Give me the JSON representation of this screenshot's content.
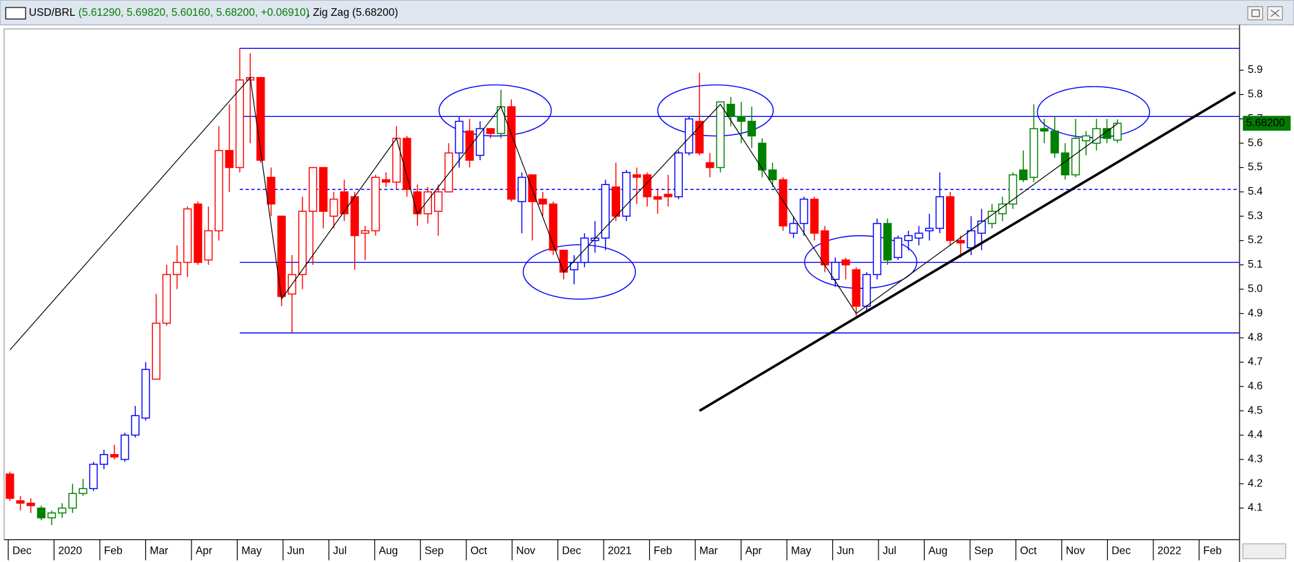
{
  "chart_data": {
    "type": "candlestick",
    "header": {
      "symbol": "USD/BRL",
      "ohlc_text": "(5.61290, 5.69820, 5.60160, 5.68200, +0.06910)",
      "indicator_text": "Zig Zag (5.68200)"
    },
    "last_price": {
      "value": 5.682,
      "label": "5.68200"
    },
    "x_labels": [
      "Dec",
      "2020",
      "Feb",
      "Mar",
      "Apr",
      "May",
      "Jun",
      "Jul",
      "Aug",
      "Sep",
      "Oct",
      "Nov",
      "Dec",
      "2021",
      "Feb",
      "Mar",
      "Apr",
      "May",
      "Jun",
      "Jul",
      "Aug",
      "Sep",
      "Oct",
      "Nov",
      "Dec",
      "2022",
      "Feb"
    ],
    "ylim": [
      3.97,
      6.07
    ],
    "yticks": [
      4.1,
      4.2,
      4.3,
      4.4,
      4.5,
      4.6,
      4.7,
      4.8,
      4.9,
      {
        "value": 5,
        "label": "5.0"
      },
      5.1,
      5.2,
      5.3,
      5.4,
      5.5,
      5.6,
      5.7,
      5.8,
      5.9
    ],
    "candles": {
      "open": [
        4.24,
        4.13,
        4.12,
        4.1,
        4.06,
        4.08,
        4.1,
        4.16,
        4.18,
        4.28,
        4.32,
        4.3,
        4.4,
        4.47,
        4.63,
        4.86,
        5.06,
        5.11,
        5.35,
        5.12,
        5.24,
        5.57,
        5.5,
        5.86,
        5.87,
        5.46,
        5.3,
        4.98,
        5.06,
        5.32,
        5.5,
        5.3,
        5.4,
        5.38,
        5.23,
        5.24,
        5.45,
        5.44,
        5.62,
        5.4,
        5.31,
        5.32,
        5.4,
        5.56,
        5.65,
        5.55,
        5.66,
        5.64,
        5.75,
        5.36,
        5.47,
        5.37,
        5.35,
        5.16,
        5.08,
        5.11,
        5.2,
        5.21,
        5.42,
        5.3,
        5.47,
        5.47,
        5.38,
        5.39,
        5.38,
        5.56,
        5.69,
        5.52,
        5.5,
        5.76,
        5.71,
        5.69,
        5.6,
        5.49,
        5.45,
        5.23,
        5.27,
        5.37,
        5.24,
        5.04,
        5.12,
        5.08,
        4.93,
        5.06,
        5.27,
        5.13,
        5.2,
        5.21,
        5.24,
        5.25,
        5.38,
        5.2,
        5.17,
        5.23,
        5.27,
        5.31,
        5.35,
        5.49,
        5.46,
        5.66,
        5.65,
        5.56,
        5.47,
        5.61,
        5.6,
        5.66,
        5.6129
      ],
      "high": [
        4.25,
        4.15,
        4.14,
        4.11,
        4.09,
        4.12,
        4.2,
        4.22,
        4.29,
        4.34,
        4.36,
        4.41,
        4.52,
        4.7,
        4.98,
        5.1,
        5.18,
        5.34,
        5.36,
        5.34,
        5.67,
        5.76,
        5.99,
        5.97,
        5.87,
        5.5,
        5.3,
        5.14,
        5.38,
        5.5,
        5.5,
        5.4,
        5.45,
        5.4,
        5.26,
        5.47,
        5.48,
        5.67,
        5.63,
        5.43,
        5.42,
        5.43,
        5.6,
        5.71,
        5.7,
        5.69,
        5.66,
        5.82,
        5.78,
        5.48,
        5.47,
        5.4,
        5.36,
        5.16,
        5.14,
        5.23,
        5.28,
        5.45,
        5.52,
        5.49,
        5.5,
        5.48,
        5.41,
        5.47,
        5.57,
        5.71,
        5.89,
        5.56,
        5.77,
        5.79,
        5.77,
        5.75,
        5.62,
        5.52,
        5.46,
        5.3,
        5.38,
        5.38,
        5.26,
        5.13,
        5.13,
        5.09,
        5.07,
        5.29,
        5.29,
        5.22,
        5.24,
        5.26,
        5.31,
        5.48,
        5.4,
        5.22,
        5.3,
        5.33,
        5.35,
        5.38,
        5.48,
        5.57,
        5.76,
        5.7,
        5.71,
        5.6,
        5.7,
        5.65,
        5.7,
        5.7,
        5.6982
      ],
      "low": [
        4.13,
        4.09,
        4.08,
        4.05,
        4.03,
        4.06,
        4.08,
        4.15,
        4.17,
        4.26,
        4.3,
        4.29,
        4.39,
        4.46,
        4.63,
        4.85,
        5.0,
        5.05,
        5.1,
        5.1,
        5.2,
        5.4,
        5.48,
        5.6,
        5.52,
        5.3,
        4.93,
        4.82,
        5.0,
        5.1,
        5.25,
        5.25,
        5.28,
        5.08,
        5.12,
        5.22,
        5.42,
        5.41,
        5.38,
        5.26,
        5.27,
        5.22,
        5.4,
        5.5,
        5.5,
        5.53,
        5.62,
        5.62,
        5.36,
        5.23,
        5.2,
        5.3,
        5.14,
        5.04,
        5.02,
        5.09,
        5.15,
        5.16,
        5.28,
        5.28,
        5.35,
        5.34,
        5.31,
        5.34,
        5.37,
        5.55,
        5.55,
        5.46,
        5.48,
        5.67,
        5.6,
        5.58,
        5.46,
        5.42,
        5.24,
        5.21,
        5.22,
        5.2,
        5.07,
        5.01,
        5.04,
        4.89,
        4.91,
        5.04,
        5.1,
        5.12,
        5.16,
        5.18,
        5.2,
        5.23,
        5.18,
        5.13,
        5.14,
        5.16,
        5.25,
        5.28,
        5.33,
        5.44,
        5.44,
        5.6,
        5.54,
        5.45,
        5.46,
        5.55,
        5.57,
        5.6,
        5.6016
      ],
      "close": [
        4.14,
        4.12,
        4.11,
        4.06,
        4.08,
        4.1,
        4.16,
        4.18,
        4.28,
        4.32,
        4.31,
        4.4,
        4.48,
        4.67,
        4.86,
        5.06,
        5.11,
        5.33,
        5.11,
        5.24,
        5.57,
        5.5,
        5.86,
        5.87,
        5.53,
        5.35,
        4.97,
        5.06,
        5.32,
        5.5,
        5.32,
        5.37,
        5.31,
        5.22,
        5.24,
        5.46,
        5.44,
        5.62,
        5.41,
        5.31,
        5.4,
        5.4,
        5.56,
        5.69,
        5.53,
        5.66,
        5.64,
        5.75,
        5.37,
        5.46,
        5.36,
        5.35,
        5.16,
        5.07,
        5.11,
        5.21,
        5.21,
        5.43,
        5.3,
        5.48,
        5.46,
        5.38,
        5.37,
        5.38,
        5.56,
        5.7,
        5.56,
        5.5,
        5.77,
        5.71,
        5.69,
        5.63,
        5.49,
        5.45,
        5.26,
        5.27,
        5.37,
        5.23,
        5.1,
        5.11,
        5.1,
        4.93,
        5.06,
        5.27,
        5.12,
        5.21,
        5.22,
        5.23,
        5.25,
        5.38,
        5.2,
        5.19,
        5.24,
        5.28,
        5.32,
        5.35,
        5.47,
        5.45,
        5.66,
        5.65,
        5.56,
        5.47,
        5.62,
        5.63,
        5.66,
        5.62,
        5.682
      ],
      "colors": [
        "red",
        "red",
        "red",
        "green",
        "green",
        "green",
        "green",
        "green",
        "blue",
        "blue",
        "red",
        "blue",
        "blue",
        "blue",
        "red",
        "red",
        "red",
        "red",
        "red",
        "red",
        "red",
        "red",
        "red",
        "red",
        "red",
        "red",
        "red",
        "red",
        "red",
        "red",
        "red",
        "red",
        "red",
        "red",
        "red",
        "red",
        "red",
        "red",
        "red",
        "red",
        "red",
        "red",
        "red",
        "blue",
        "red",
        "blue",
        "red",
        "green",
        "red",
        "blue",
        "red",
        "red",
        "red",
        "red",
        "blue",
        "blue",
        "blue",
        "blue",
        "red",
        "blue",
        "red",
        "red",
        "red",
        "red",
        "blue",
        "blue",
        "red",
        "red",
        "green",
        "green",
        "green",
        "green",
        "green",
        "green",
        "red",
        "blue",
        "blue",
        "red",
        "red",
        "blue",
        "red",
        "red",
        "blue",
        "blue",
        "green",
        "blue",
        "blue",
        "blue",
        "blue",
        "blue",
        "red",
        "red",
        "blue",
        "blue",
        "green",
        "green",
        "green",
        "green",
        "green",
        "green",
        "green",
        "green",
        "green",
        "green",
        "green",
        "green",
        "green"
      ]
    },
    "zigzag": {
      "x": [
        0,
        23,
        26,
        37,
        39,
        47,
        53,
        68,
        81,
        106
      ],
      "values": [
        4.75,
        5.87,
        4.96,
        5.62,
        5.31,
        5.75,
        5.07,
        5.76,
        4.9,
        5.68
      ],
      "color": "#000000"
    },
    "trendline": {
      "x": [
        66,
        117.3
      ],
      "values": [
        4.5,
        5.81
      ],
      "color": "#000000"
    },
    "levels": {
      "start_x": 22,
      "values": [
        5.99,
        5.71,
        5.41,
        5.11,
        4.82
      ],
      "dashed": [
        false,
        false,
        true,
        false,
        false
      ],
      "color": "#0000ff"
    }
  }
}
